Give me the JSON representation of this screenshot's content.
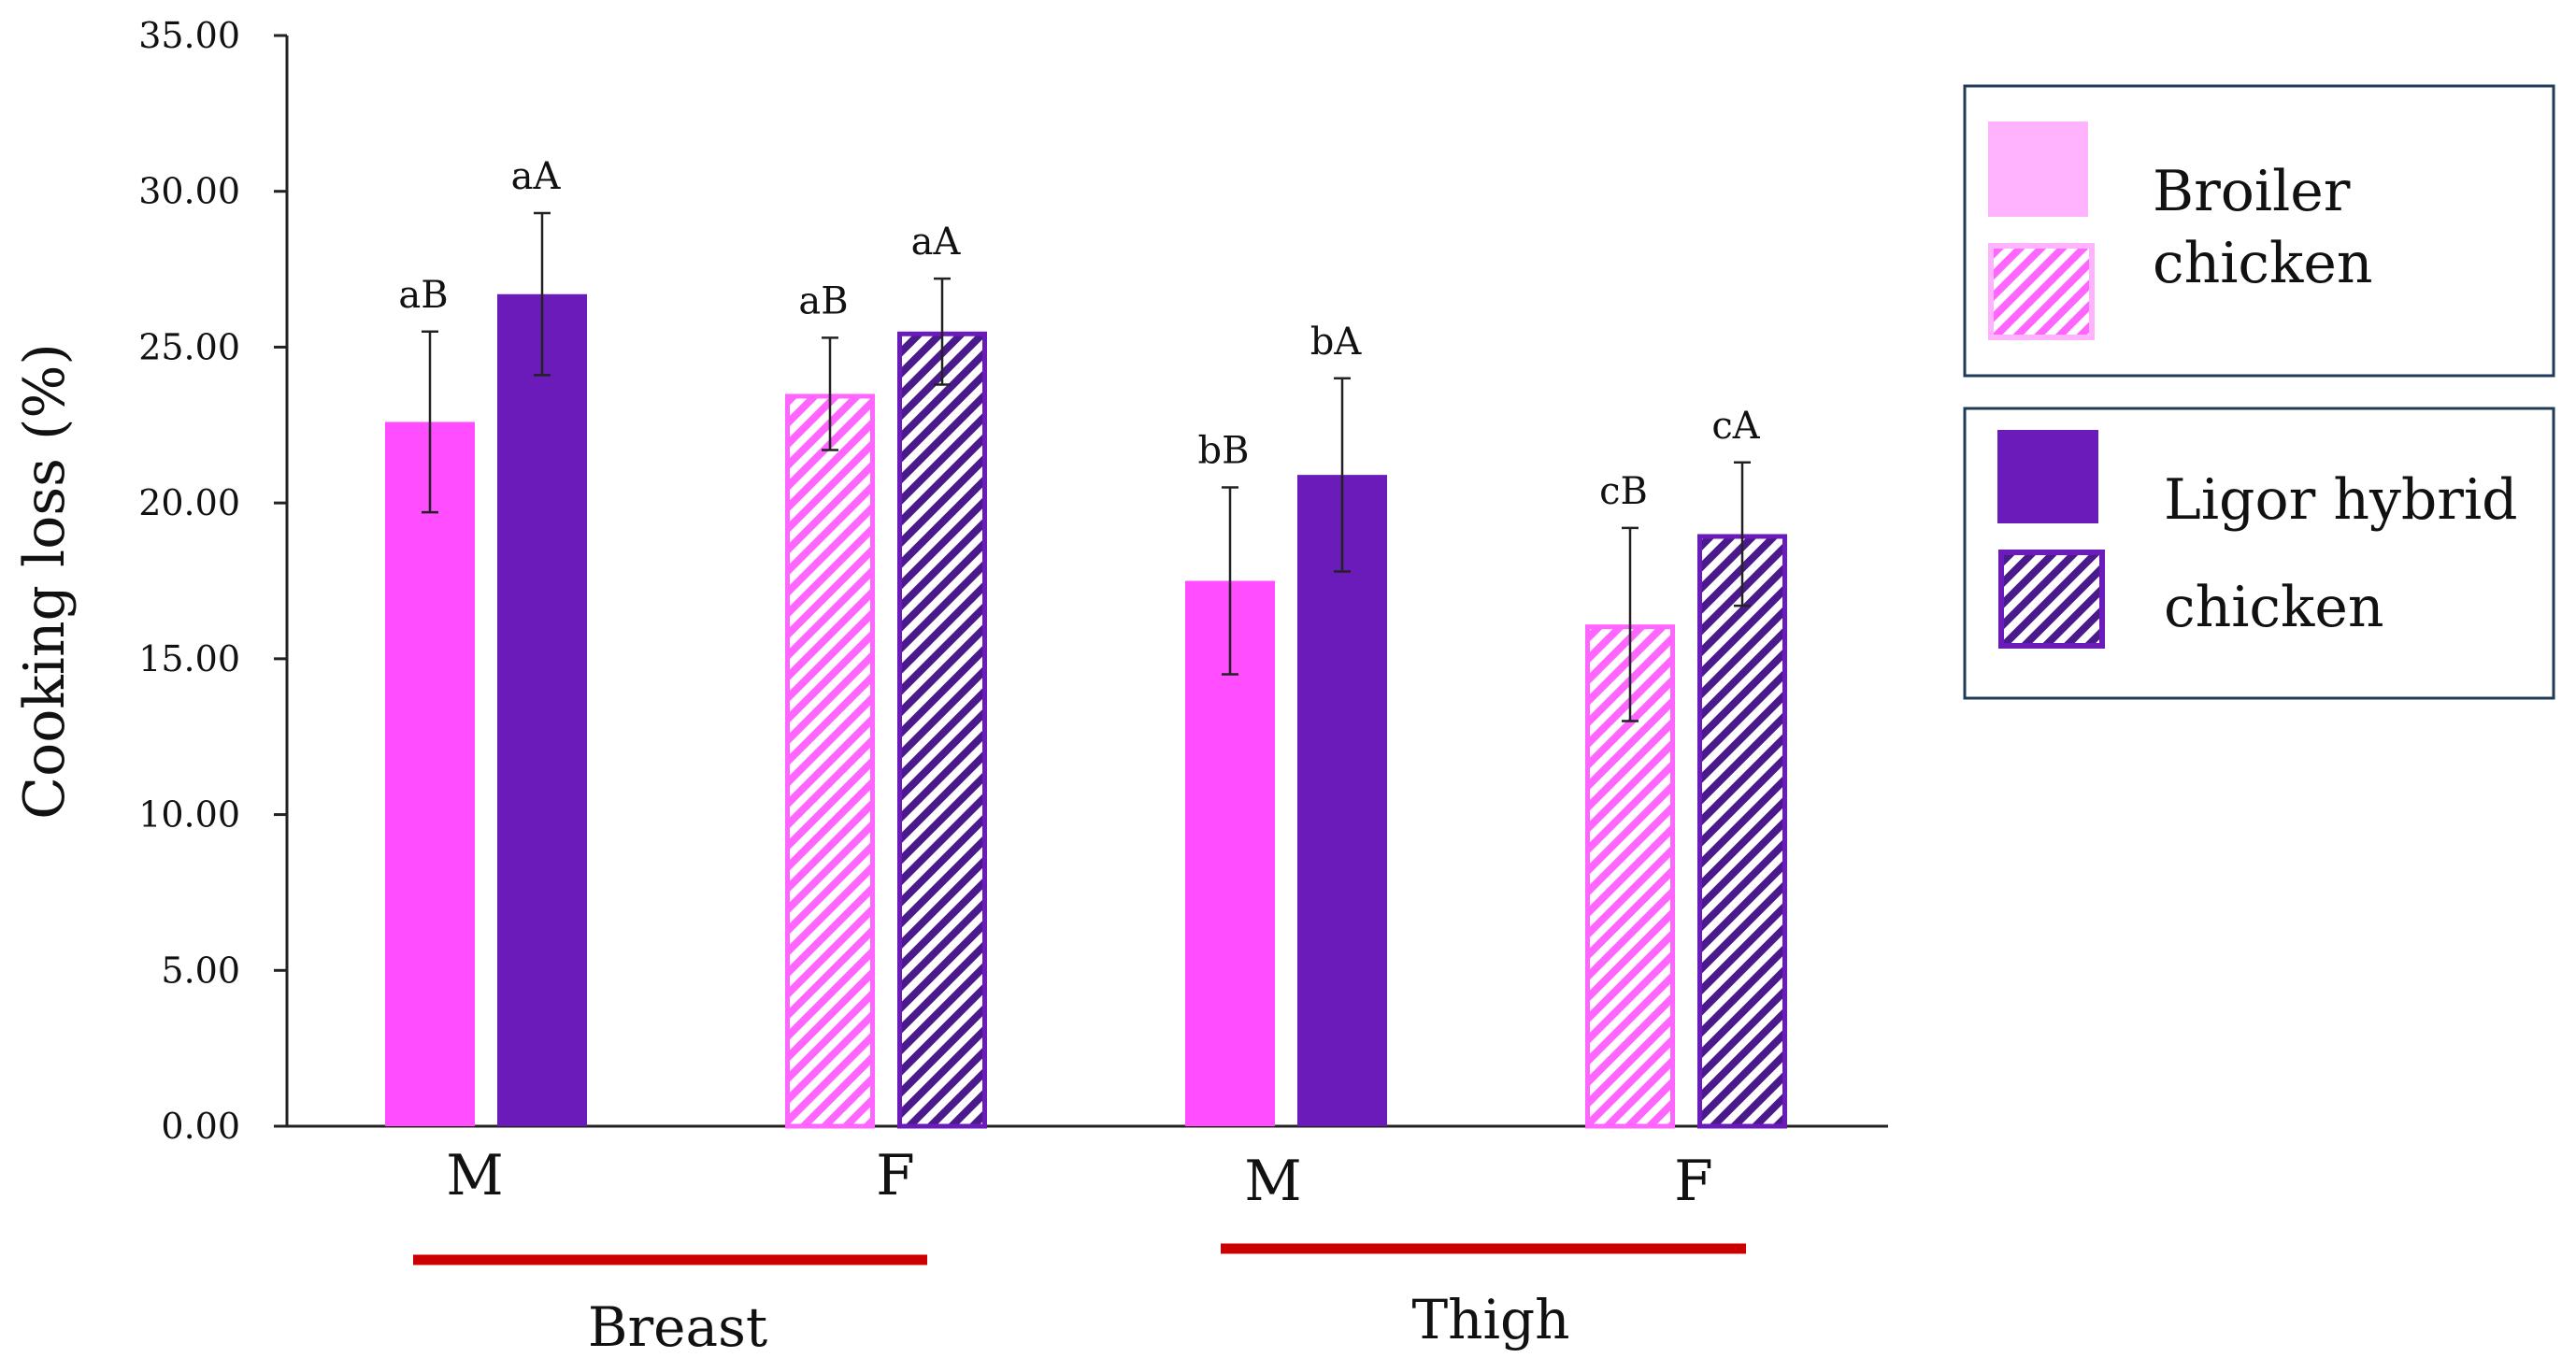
{
  "chart_data": {
    "type": "bar",
    "ylabel": "Cooking loss (%)",
    "ylim": [
      0,
      35
    ],
    "yticks": [
      "0.00",
      "5.00",
      "10.00",
      "15.00",
      "20.00",
      "25.00",
      "30.00",
      "35.00"
    ],
    "grid": false,
    "legend_position": "right",
    "colors": {
      "broiler": "#ff4dff",
      "broiler_light": "#ffb3ff",
      "ligor": "#6a1bb9",
      "group_underline": "#cc0000",
      "error_bar": "#222222"
    },
    "legend": [
      {
        "lines": [
          "Broiler",
          "chicken"
        ]
      },
      {
        "lines": [
          "Ligor hybrid",
          "chicken"
        ]
      }
    ],
    "groups": [
      {
        "name": "Breast",
        "categories": [
          "M",
          "F"
        ]
      },
      {
        "name": "Thigh",
        "categories": [
          "M",
          "F"
        ]
      }
    ],
    "bars": [
      {
        "group": "Breast",
        "category": "M",
        "series": "Broiler chicken",
        "value": 22.6,
        "error": 2.9,
        "label": "aB",
        "pattern": "solid"
      },
      {
        "group": "Breast",
        "category": "M",
        "series": "Ligor hybrid chicken",
        "value": 26.7,
        "error": 2.6,
        "label": "aA",
        "pattern": "solid"
      },
      {
        "group": "Breast",
        "category": "F",
        "series": "Broiler chicken",
        "value": 23.5,
        "error": 1.8,
        "label": "aB",
        "pattern": "hatched"
      },
      {
        "group": "Breast",
        "category": "F",
        "series": "Ligor hybrid chicken",
        "value": 25.5,
        "error": 1.7,
        "label": "aA",
        "pattern": "hatched"
      },
      {
        "group": "Thigh",
        "category": "M",
        "series": "Broiler chicken",
        "value": 17.5,
        "error": 3.0,
        "label": "bB",
        "pattern": "solid"
      },
      {
        "group": "Thigh",
        "category": "M",
        "series": "Ligor hybrid chicken",
        "value": 20.9,
        "error": 3.1,
        "label": "bA",
        "pattern": "solid"
      },
      {
        "group": "Thigh",
        "category": "F",
        "series": "Broiler chicken",
        "value": 16.1,
        "error": 3.1,
        "label": "cB",
        "pattern": "hatched"
      },
      {
        "group": "Thigh",
        "category": "F",
        "series": "Ligor hybrid chicken",
        "value": 19.0,
        "error": 2.3,
        "label": "cA",
        "pattern": "hatched"
      }
    ]
  }
}
